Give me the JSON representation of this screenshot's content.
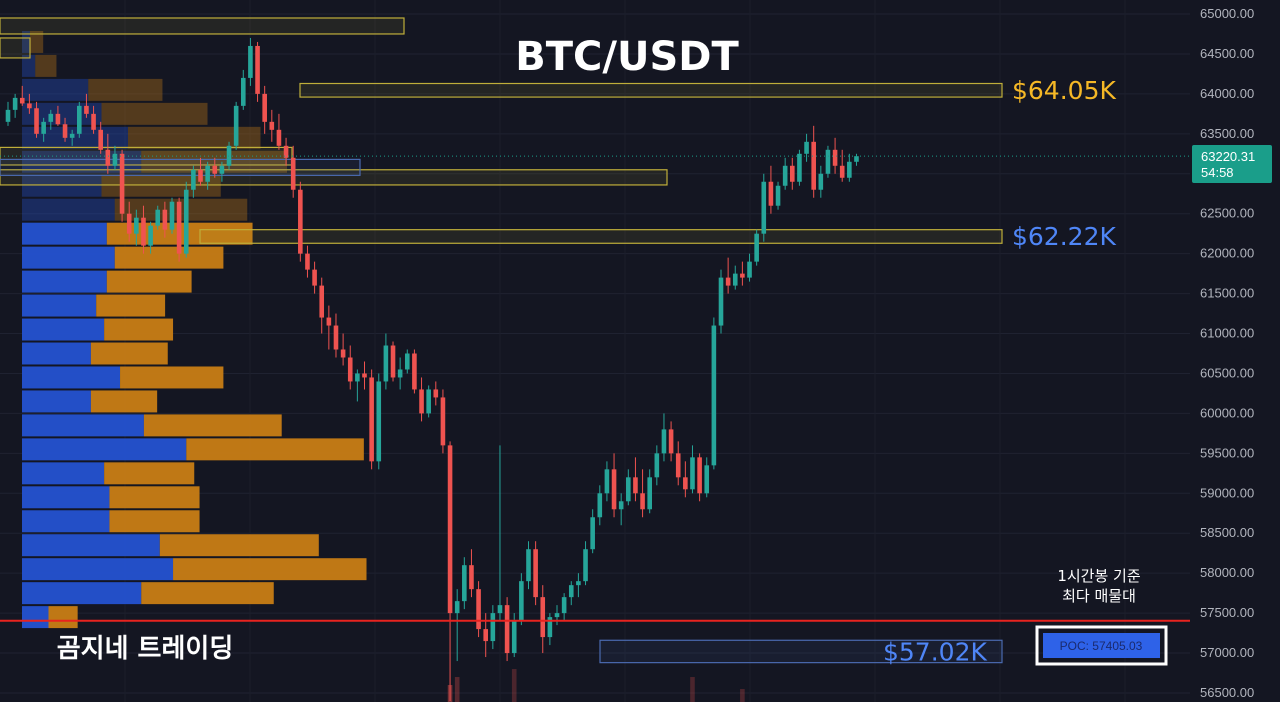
{
  "chart_data": {
    "type": "candlestick",
    "title": "BTC/USDT",
    "y_axis": {
      "min": 56400,
      "max": 65150,
      "ticks": [
        65000,
        64500,
        64000,
        63500,
        63000,
        62500,
        62000,
        61500,
        61000,
        60500,
        60000,
        59500,
        59000,
        58500,
        58000,
        57500,
        57000,
        56500
      ],
      "tick_labels": [
        "65000.00",
        "64500.00",
        "64000.00",
        "63500.00",
        "63000.00",
        "62500.00",
        "62000.00",
        "61500.00",
        "61000.00",
        "60500.00",
        "60000.00",
        "59500.00",
        "59000.00",
        "58500.00",
        "58000.00",
        "57500.00",
        "57000.00",
        "56500.00"
      ]
    },
    "current_price": {
      "value": 63220.31,
      "label": "63220.31",
      "countdown": "54:58"
    },
    "levels": [
      {
        "price": 64050,
        "label": "$64.05K",
        "color": "#f5b826"
      },
      {
        "price": 62220,
        "label": "$62.22K",
        "color": "#4f86f7"
      },
      {
        "price": 57020,
        "label": "$57.02K",
        "color": "#4f86f7"
      }
    ],
    "poc": {
      "price": 57405.03,
      "label": "POC: 57405.03",
      "note_line1": "1시간봉 기준",
      "note_line2": "최다 매물대"
    },
    "volume_profile": [
      {
        "price_low": 64500,
        "price_high": 64800,
        "buy": 3,
        "sell": 5
      },
      {
        "price_low": 64200,
        "price_high": 64500,
        "buy": 5,
        "sell": 8
      },
      {
        "price_low": 63900,
        "price_high": 64200,
        "buy": 25,
        "sell": 28
      },
      {
        "price_low": 63600,
        "price_high": 63900,
        "buy": 30,
        "sell": 40
      },
      {
        "price_low": 63300,
        "price_high": 63600,
        "buy": 40,
        "sell": 50
      },
      {
        "price_low": 63000,
        "price_high": 63300,
        "buy": 45,
        "sell": 55
      },
      {
        "price_low": 62700,
        "price_high": 63000,
        "buy": 30,
        "sell": 45
      },
      {
        "price_low": 62400,
        "price_high": 62700,
        "buy": 35,
        "sell": 50
      },
      {
        "price_low": 62100,
        "price_high": 62400,
        "buy": 32,
        "sell": 55
      },
      {
        "price_low": 61800,
        "price_high": 62100,
        "buy": 35,
        "sell": 41
      },
      {
        "price_low": 61500,
        "price_high": 61800,
        "buy": 32,
        "sell": 32
      },
      {
        "price_low": 61200,
        "price_high": 61500,
        "buy": 28,
        "sell": 26
      },
      {
        "price_low": 60900,
        "price_high": 61200,
        "buy": 31,
        "sell": 26
      },
      {
        "price_low": 60600,
        "price_high": 60900,
        "buy": 26,
        "sell": 29
      },
      {
        "price_low": 60300,
        "price_high": 60600,
        "buy": 37,
        "sell": 39
      },
      {
        "price_low": 60000,
        "price_high": 60300,
        "buy": 26,
        "sell": 25
      },
      {
        "price_low": 59700,
        "price_high": 60000,
        "buy": 46,
        "sell": 52
      },
      {
        "price_low": 59400,
        "price_high": 59700,
        "buy": 62,
        "sell": 67
      },
      {
        "price_low": 59100,
        "price_high": 59400,
        "buy": 31,
        "sell": 34
      },
      {
        "price_low": 58800,
        "price_high": 59100,
        "buy": 33,
        "sell": 34
      },
      {
        "price_low": 58500,
        "price_high": 58800,
        "buy": 33,
        "sell": 34
      },
      {
        "price_low": 58200,
        "price_high": 58500,
        "buy": 52,
        "sell": 60
      },
      {
        "price_low": 57900,
        "price_high": 58200,
        "buy": 57,
        "sell": 73
      },
      {
        "price_low": 57600,
        "price_high": 57900,
        "buy": 45,
        "sell": 50
      },
      {
        "price_low": 57300,
        "price_high": 57600,
        "buy": 10,
        "sell": 11
      }
    ],
    "candles": [
      [
        63650,
        63900,
        63600,
        63800
      ],
      [
        63800,
        64000,
        63700,
        63950
      ],
      [
        63950,
        64100,
        63850,
        63880
      ],
      [
        63880,
        64000,
        63750,
        63820
      ],
      [
        63820,
        63900,
        63450,
        63500
      ],
      [
        63500,
        63700,
        63400,
        63650
      ],
      [
        63650,
        63800,
        63550,
        63750
      ],
      [
        63750,
        63850,
        63600,
        63620
      ],
      [
        63620,
        63700,
        63400,
        63450
      ],
      [
        63450,
        63550,
        63350,
        63500
      ],
      [
        63500,
        63900,
        63450,
        63850
      ],
      [
        63850,
        64000,
        63700,
        63750
      ],
      [
        63750,
        63850,
        63500,
        63550
      ],
      [
        63550,
        63650,
        63250,
        63300
      ],
      [
        63300,
        63500,
        63000,
        63100
      ],
      [
        63100,
        63350,
        63050,
        63250
      ],
      [
        63250,
        63300,
        62400,
        62500
      ],
      [
        62500,
        62650,
        62150,
        62250
      ],
      [
        62250,
        62550,
        62100,
        62450
      ],
      [
        62450,
        62600,
        62000,
        62100
      ],
      [
        62100,
        62400,
        62000,
        62350
      ],
      [
        62350,
        62600,
        62300,
        62550
      ],
      [
        62550,
        62650,
        62200,
        62300
      ],
      [
        62300,
        62700,
        62250,
        62650
      ],
      [
        62650,
        62700,
        61900,
        62000
      ],
      [
        62000,
        62900,
        61950,
        62800
      ],
      [
        62800,
        63100,
        62700,
        63050
      ],
      [
        63050,
        63200,
        62850,
        62900
      ],
      [
        62900,
        63150,
        62800,
        63100
      ],
      [
        63100,
        63200,
        62950,
        63000
      ],
      [
        63000,
        63150,
        62900,
        63100
      ],
      [
        63100,
        63400,
        63050,
        63350
      ],
      [
        63350,
        63900,
        63300,
        63850
      ],
      [
        63850,
        64300,
        63800,
        64200
      ],
      [
        64200,
        64700,
        64100,
        64600
      ],
      [
        64600,
        64650,
        63900,
        64000
      ],
      [
        64000,
        64100,
        63500,
        63650
      ],
      [
        63650,
        63800,
        63400,
        63550
      ],
      [
        63550,
        63750,
        63300,
        63350
      ],
      [
        63350,
        63450,
        63100,
        63200
      ],
      [
        63200,
        63350,
        62700,
        62800
      ],
      [
        62800,
        62900,
        61900,
        62000
      ],
      [
        62000,
        62100,
        61700,
        61800
      ],
      [
        61800,
        61900,
        61500,
        61600
      ],
      [
        61600,
        61700,
        61000,
        61200
      ],
      [
        61200,
        61350,
        60800,
        61100
      ],
      [
        61100,
        61250,
        60700,
        60800
      ],
      [
        60800,
        61000,
        60600,
        60700
      ],
      [
        60700,
        60850,
        60300,
        60400
      ],
      [
        60400,
        60550,
        60150,
        60500
      ],
      [
        60500,
        60650,
        60300,
        60450
      ],
      [
        60450,
        60550,
        59300,
        59400
      ],
      [
        59400,
        60500,
        59300,
        60400
      ],
      [
        60400,
        61000,
        60300,
        60850
      ],
      [
        60850,
        60900,
        60400,
        60450
      ],
      [
        60450,
        60700,
        60300,
        60550
      ],
      [
        60550,
        60800,
        60500,
        60750
      ],
      [
        60750,
        60800,
        60250,
        60300
      ],
      [
        60300,
        60450,
        59900,
        60000
      ],
      [
        60000,
        60350,
        59950,
        60300
      ],
      [
        60300,
        60400,
        60100,
        60200
      ],
      [
        60200,
        60300,
        59500,
        59600
      ],
      [
        59600,
        59650,
        56400,
        57500
      ],
      [
        57500,
        57800,
        56900,
        57650
      ],
      [
        57650,
        58200,
        57550,
        58100
      ],
      [
        58100,
        58300,
        57700,
        57800
      ],
      [
        57800,
        57900,
        57200,
        57300
      ],
      [
        57300,
        57500,
        56950,
        57150
      ],
      [
        57150,
        57600,
        57050,
        57500
      ],
      [
        57500,
        59600,
        57400,
        57600
      ],
      [
        57600,
        57700,
        56900,
        57000
      ],
      [
        57000,
        57500,
        56950,
        57400
      ],
      [
        57400,
        58000,
        57350,
        57900
      ],
      [
        57900,
        58400,
        57800,
        58300
      ],
      [
        58300,
        58400,
        57600,
        57700
      ],
      [
        57700,
        57850,
        57000,
        57200
      ],
      [
        57200,
        57500,
        57100,
        57450
      ],
      [
        57450,
        57600,
        57350,
        57500
      ],
      [
        57500,
        57750,
        57400,
        57700
      ],
      [
        57700,
        57900,
        57600,
        57850
      ],
      [
        57850,
        58000,
        57700,
        57900
      ],
      [
        57900,
        58400,
        57850,
        58300
      ],
      [
        58300,
        58800,
        58250,
        58700
      ],
      [
        58700,
        59100,
        58600,
        59000
      ],
      [
        59000,
        59400,
        58900,
        59300
      ],
      [
        59300,
        59500,
        58700,
        58800
      ],
      [
        58800,
        59000,
        58600,
        58900
      ],
      [
        58900,
        59300,
        58850,
        59200
      ],
      [
        59200,
        59450,
        58900,
        59000
      ],
      [
        59000,
        59300,
        58700,
        58800
      ],
      [
        58800,
        59300,
        58750,
        59200
      ],
      [
        59200,
        59600,
        59100,
        59500
      ],
      [
        59500,
        60000,
        59400,
        59800
      ],
      [
        59800,
        59900,
        59400,
        59500
      ],
      [
        59500,
        59650,
        59100,
        59200
      ],
      [
        59200,
        59400,
        58950,
        59050
      ],
      [
        59050,
        59600,
        59000,
        59450
      ],
      [
        59450,
        59500,
        58900,
        59000
      ],
      [
        59000,
        59450,
        58950,
        59350
      ],
      [
        59350,
        61200,
        59300,
        61100
      ],
      [
        61100,
        61800,
        61000,
        61700
      ],
      [
        61700,
        61950,
        61500,
        61600
      ],
      [
        61600,
        61850,
        61550,
        61750
      ],
      [
        61750,
        61900,
        61600,
        61700
      ],
      [
        61700,
        62000,
        61650,
        61900
      ],
      [
        61900,
        62300,
        61850,
        62250
      ],
      [
        62250,
        63000,
        62150,
        62900
      ],
      [
        62900,
        63100,
        62500,
        62600
      ],
      [
        62600,
        62900,
        62550,
        62850
      ],
      [
        62850,
        63200,
        62800,
        63100
      ],
      [
        63100,
        63200,
        62800,
        62900
      ],
      [
        62900,
        63300,
        62850,
        63250
      ],
      [
        63250,
        63500,
        63150,
        63400
      ],
      [
        63400,
        63600,
        62700,
        62800
      ],
      [
        62800,
        63100,
        62700,
        63000
      ],
      [
        63000,
        63350,
        62950,
        63300
      ],
      [
        63300,
        63450,
        63000,
        63100
      ],
      [
        63100,
        63300,
        62900,
        62950
      ],
      [
        62950,
        63250,
        62900,
        63150
      ],
      [
        63150,
        63250,
        63100,
        63220
      ]
    ],
    "volume_spikes": [
      [
        62,
        56600,
        0.9
      ],
      [
        63,
        56700,
        0.6
      ],
      [
        71,
        56800,
        0.5
      ],
      [
        96,
        56700,
        0.5
      ],
      [
        103,
        56550,
        0.5
      ]
    ]
  },
  "watermark": "곰지네 트레이딩",
  "colors": {
    "up": "#26a69a",
    "down": "#ef5350",
    "buy_bar": "#2452d1",
    "sell_bar": "#c87d15",
    "zone_yellow": "#bfae3a",
    "zone_blue": "#4a6ab0",
    "poc_line": "#e8231f",
    "price_tag": "#1a9e8a"
  }
}
